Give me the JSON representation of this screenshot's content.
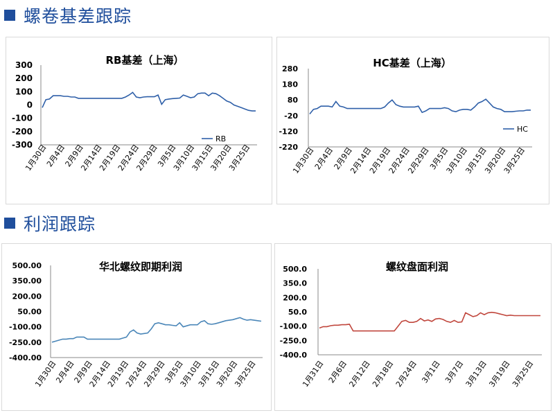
{
  "sections": {
    "top_title": "螺卷基差跟踪",
    "bottom_title": "利润跟踪"
  },
  "colors": {
    "accent": "#1f4e9c",
    "rb": "#2e5fa8",
    "hc": "#2e5fa8",
    "profit_north": "#4a86b8",
    "profit_futures": "#c0463c"
  },
  "chart_data": [
    {
      "id": "rb",
      "type": "line",
      "title": "RB基差（上海）",
      "yticks": [
        300,
        200,
        100,
        0,
        -100,
        -200,
        -300
      ],
      "ylim": [
        -300,
        300
      ],
      "xticks": [
        "1月30日",
        "2月4日",
        "2月9日",
        "2月14日",
        "2月19日",
        "2月24日",
        "2月29日",
        "3月5日",
        "3月10日",
        "3月15日",
        "3月20日",
        "3月25日"
      ],
      "legend_position": "bottom-right",
      "series": [
        {
          "name": "RB",
          "values": [
            -20,
            40,
            45,
            70,
            70,
            70,
            65,
            65,
            60,
            60,
            50,
            50,
            50,
            50,
            50,
            50,
            50,
            50,
            50,
            50,
            50,
            50,
            50,
            60,
            75,
            95,
            60,
            55,
            60,
            62,
            62,
            62,
            75,
            5,
            40,
            45,
            48,
            50,
            52,
            75,
            65,
            55,
            60,
            85,
            90,
            90,
            70,
            90,
            85,
            70,
            50,
            30,
            20,
            0,
            -10,
            -20,
            -30,
            -40,
            -45,
            -45
          ]
        }
      ]
    },
    {
      "id": "hc",
      "type": "line",
      "title": "HC基差（上海）",
      "yticks": [
        280,
        180,
        80,
        -20,
        -120,
        -220
      ],
      "ylim": [
        -220,
        280
      ],
      "xticks": [
        "1月30日",
        "2月4日",
        "2月9日",
        "2月14日",
        "2月19日",
        "2月24日",
        "2月29日",
        "3月5日",
        "3月10日",
        "3月15日",
        "3月20日",
        "3月25日"
      ],
      "legend_position": "bottom-right",
      "series": [
        {
          "name": "HC",
          "values": [
            -10,
            20,
            25,
            40,
            40,
            40,
            35,
            70,
            40,
            35,
            25,
            25,
            25,
            25,
            25,
            25,
            25,
            25,
            25,
            25,
            35,
            60,
            80,
            50,
            40,
            35,
            35,
            35,
            35,
            40,
            0,
            10,
            25,
            25,
            25,
            25,
            30,
            25,
            10,
            5,
            15,
            20,
            20,
            15,
            35,
            60,
            70,
            85,
            60,
            35,
            25,
            20,
            5,
            5,
            5,
            8,
            10,
            10,
            15,
            15
          ]
        }
      ]
    },
    {
      "id": "north_profit",
      "type": "line",
      "title": "华北螺纹即期利润",
      "yticks": [
        "500.00",
        "350.00",
        "200.00",
        "50.00",
        "-100.00",
        "-250.00",
        "-400.00"
      ],
      "ylim": [
        -400,
        500
      ],
      "xticks": [
        "1月30日",
        "2月4日",
        "2月9日",
        "2月14日",
        "2月19日",
        "2月24日",
        "2月29日",
        "3月5日",
        "3月10日",
        "3月15日",
        "3月20日",
        "3月25日"
      ],
      "series": [
        {
          "name": "",
          "values": [
            -250,
            -240,
            -230,
            -220,
            -220,
            -215,
            -215,
            -200,
            -200,
            -200,
            -220,
            -220,
            -220,
            -220,
            -220,
            -220,
            -220,
            -220,
            -220,
            -220,
            -210,
            -200,
            -150,
            -130,
            -160,
            -170,
            -165,
            -160,
            -120,
            -70,
            -60,
            -70,
            -80,
            -80,
            -85,
            -90,
            -60,
            -100,
            -90,
            -80,
            -80,
            -80,
            -50,
            -40,
            -70,
            -75,
            -70,
            -60,
            -50,
            -40,
            -35,
            -30,
            -20,
            -10,
            -25,
            -35,
            -30,
            -35,
            -40,
            -45
          ]
        }
      ]
    },
    {
      "id": "futures_profit",
      "type": "line",
      "title": "螺纹盘面利润",
      "yticks": [
        "500.0",
        "350.0",
        "200.0",
        "50.0",
        "-100.0",
        "-250.0",
        "-400.0"
      ],
      "ylim": [
        -400,
        500
      ],
      "xticks": [
        "1月31日",
        "2月6日",
        "2月12日",
        "2月18日",
        "2月24日",
        "3月1日",
        "3月7日",
        "3月13日",
        "3月19日",
        "3月25日"
      ],
      "series": [
        {
          "name": "",
          "values": [
            -120,
            -105,
            -105,
            -95,
            -90,
            -90,
            -85,
            -85,
            -80,
            -150,
            -150,
            -150,
            -150,
            -150,
            -150,
            -150,
            -150,
            -150,
            -150,
            -150,
            -150,
            -100,
            -50,
            -40,
            -60,
            -60,
            -50,
            -20,
            -45,
            -35,
            -50,
            -25,
            -20,
            -30,
            -50,
            -60,
            -40,
            -60,
            -55,
            40,
            20,
            0,
            10,
            40,
            20,
            40,
            45,
            40,
            30,
            20,
            10,
            15,
            10,
            10,
            10,
            10,
            10,
            10,
            10,
            10
          ]
        }
      ]
    }
  ]
}
